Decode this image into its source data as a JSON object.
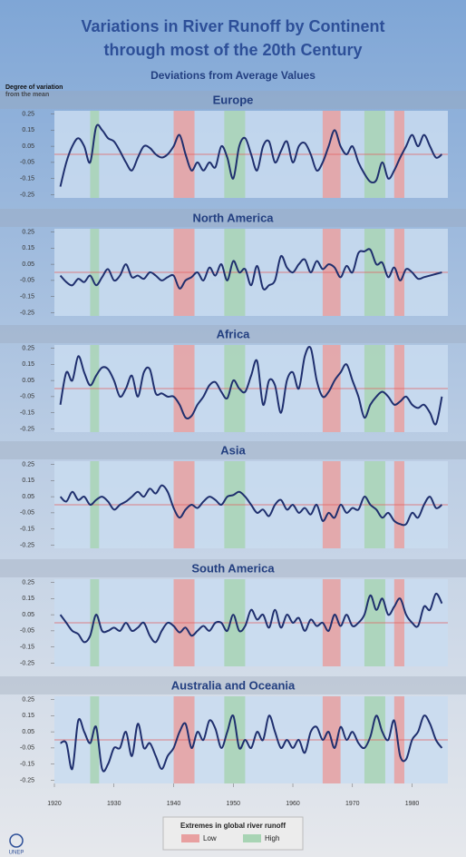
{
  "title": [
    "Variations in River Runoff by Continent",
    "through most of the 20th Century"
  ],
  "subtitle": "Deviations from Average Values",
  "y_label": [
    "Degree of variation",
    "from the mean"
  ],
  "axes": {
    "xlim": [
      1920,
      1986
    ],
    "xticks": [
      1920,
      1930,
      1940,
      1950,
      1960,
      1970,
      1980
    ],
    "ylim": [
      -0.27,
      0.27
    ],
    "yticks": [
      0.25,
      0.15,
      0.05,
      -0.05,
      -0.15,
      -0.25
    ],
    "mean": 0,
    "mean_color": "#e06060"
  },
  "extremes": {
    "title": "Extremes in global river runoff",
    "low": {
      "label": "Low",
      "color": "#e8a0a0",
      "periods": [
        [
          1940,
          1943.5
        ],
        [
          1965,
          1968
        ],
        [
          1977,
          1978.7
        ]
      ]
    },
    "high": {
      "label": "High",
      "color": "#a8d4b4",
      "periods": [
        [
          1926,
          1927.5
        ],
        [
          1948.5,
          1952
        ],
        [
          1972,
          1975.5
        ]
      ]
    }
  },
  "logo": "UNEP",
  "chart_data": [
    {
      "type": "line",
      "title": "Europe",
      "color": "#1f2f6e",
      "x": [
        1921,
        1922,
        1923,
        1924,
        1925,
        1926,
        1927,
        1928,
        1929,
        1930,
        1931,
        1932,
        1933,
        1934,
        1935,
        1936,
        1937,
        1938,
        1939,
        1940,
        1941,
        1942,
        1943,
        1944,
        1945,
        1946,
        1947,
        1948,
        1949,
        1950,
        1951,
        1952,
        1953,
        1954,
        1955,
        1956,
        1957,
        1958,
        1959,
        1960,
        1961,
        1962,
        1963,
        1964,
        1965,
        1966,
        1967,
        1968,
        1969,
        1970,
        1971,
        1972,
        1973,
        1974,
        1975,
        1976,
        1977,
        1978,
        1979,
        1980,
        1981,
        1982,
        1983,
        1984,
        1985
      ],
      "values": [
        -0.2,
        -0.05,
        0.05,
        0.1,
        0.05,
        -0.05,
        0.17,
        0.15,
        0.1,
        0.08,
        0.02,
        -0.05,
        -0.1,
        -0.02,
        0.05,
        0.04,
        0.0,
        -0.02,
        0.0,
        0.05,
        0.12,
        0.0,
        -0.1,
        -0.05,
        -0.1,
        -0.05,
        -0.08,
        0.05,
        -0.02,
        -0.15,
        0.05,
        0.1,
        0.0,
        -0.1,
        0.05,
        0.08,
        -0.05,
        0.02,
        0.08,
        -0.05,
        0.05,
        0.07,
        0.0,
        -0.1,
        -0.05,
        0.05,
        0.15,
        0.05,
        0.0,
        0.05,
        -0.05,
        -0.12,
        -0.17,
        -0.16,
        -0.05,
        -0.15,
        -0.1,
        -0.02,
        0.05,
        0.12,
        0.05,
        0.12,
        0.05,
        -0.02,
        0.0
      ]
    },
    {
      "type": "line",
      "title": "North America",
      "color": "#1f2f6e",
      "x": [
        1921,
        1922,
        1923,
        1924,
        1925,
        1926,
        1927,
        1928,
        1929,
        1930,
        1931,
        1932,
        1933,
        1934,
        1935,
        1936,
        1937,
        1938,
        1939,
        1940,
        1941,
        1942,
        1943,
        1944,
        1945,
        1946,
        1947,
        1948,
        1949,
        1950,
        1951,
        1952,
        1953,
        1954,
        1955,
        1956,
        1957,
        1958,
        1959,
        1960,
        1961,
        1962,
        1963,
        1964,
        1965,
        1966,
        1967,
        1968,
        1969,
        1970,
        1971,
        1972,
        1973,
        1974,
        1975,
        1976,
        1977,
        1978,
        1979,
        1980,
        1981,
        1982,
        1983,
        1984,
        1985
      ],
      "values": [
        -0.02,
        -0.06,
        -0.08,
        -0.04,
        -0.06,
        -0.02,
        -0.08,
        -0.03,
        0.02,
        -0.05,
        -0.02,
        0.05,
        -0.03,
        -0.02,
        -0.04,
        0.0,
        -0.02,
        -0.05,
        -0.03,
        -0.02,
        -0.1,
        -0.05,
        -0.03,
        0.0,
        -0.05,
        0.03,
        -0.02,
        0.05,
        -0.05,
        0.07,
        0.0,
        0.02,
        -0.08,
        0.04,
        -0.1,
        -0.08,
        -0.05,
        0.1,
        0.03,
        0.0,
        0.05,
        0.08,
        0.0,
        0.07,
        0.02,
        0.05,
        0.03,
        -0.03,
        0.04,
        0.0,
        0.12,
        0.13,
        0.14,
        0.05,
        0.06,
        -0.03,
        0.03,
        -0.05,
        0.02,
        0.0,
        -0.04,
        -0.03,
        -0.02,
        -0.01,
        0.0
      ]
    },
    {
      "type": "line",
      "title": "Africa",
      "color": "#1f2f6e",
      "x": [
        1921,
        1922,
        1923,
        1924,
        1925,
        1926,
        1927,
        1928,
        1929,
        1930,
        1931,
        1932,
        1933,
        1934,
        1935,
        1936,
        1937,
        1938,
        1939,
        1940,
        1941,
        1942,
        1943,
        1944,
        1945,
        1946,
        1947,
        1948,
        1949,
        1950,
        1951,
        1952,
        1953,
        1954,
        1955,
        1956,
        1957,
        1958,
        1959,
        1960,
        1961,
        1962,
        1963,
        1964,
        1965,
        1966,
        1967,
        1968,
        1969,
        1970,
        1971,
        1972,
        1973,
        1974,
        1975,
        1976,
        1977,
        1978,
        1979,
        1980,
        1981,
        1982,
        1983,
        1984,
        1985
      ],
      "values": [
        -0.1,
        0.1,
        0.05,
        0.2,
        0.1,
        0.02,
        0.08,
        0.13,
        0.12,
        0.05,
        -0.05,
        0.0,
        0.08,
        -0.05,
        0.1,
        0.12,
        -0.03,
        -0.03,
        -0.05,
        -0.05,
        -0.1,
        -0.18,
        -0.17,
        -0.1,
        -0.05,
        0.02,
        0.04,
        -0.02,
        -0.06,
        0.05,
        0.0,
        -0.02,
        0.08,
        0.17,
        -0.1,
        0.05,
        0.02,
        -0.15,
        0.05,
        0.1,
        0.0,
        0.2,
        0.25,
        0.05,
        -0.05,
        -0.02,
        0.05,
        0.1,
        0.15,
        0.05,
        -0.05,
        -0.18,
        -0.1,
        -0.05,
        -0.02,
        -0.05,
        -0.1,
        -0.08,
        -0.05,
        -0.1,
        -0.12,
        -0.1,
        -0.15,
        -0.22,
        -0.05
      ]
    },
    {
      "type": "line",
      "title": "Asia",
      "color": "#1f2f6e",
      "x": [
        1921,
        1922,
        1923,
        1924,
        1925,
        1926,
        1927,
        1928,
        1929,
        1930,
        1931,
        1932,
        1933,
        1934,
        1935,
        1936,
        1937,
        1938,
        1939,
        1940,
        1941,
        1942,
        1943,
        1944,
        1945,
        1946,
        1947,
        1948,
        1949,
        1950,
        1951,
        1952,
        1953,
        1954,
        1955,
        1956,
        1957,
        1958,
        1959,
        1960,
        1961,
        1962,
        1963,
        1964,
        1965,
        1966,
        1967,
        1968,
        1969,
        1970,
        1971,
        1972,
        1973,
        1974,
        1975,
        1976,
        1977,
        1978,
        1979,
        1980,
        1981,
        1982,
        1983,
        1984,
        1985
      ],
      "values": [
        0.05,
        0.02,
        0.08,
        0.03,
        0.05,
        0.0,
        0.03,
        0.05,
        0.02,
        -0.03,
        0.0,
        0.02,
        0.05,
        0.08,
        0.05,
        0.1,
        0.07,
        0.12,
        0.08,
        -0.02,
        -0.08,
        -0.03,
        0.0,
        -0.02,
        0.02,
        0.05,
        0.03,
        0.0,
        0.05,
        0.06,
        0.08,
        0.05,
        0.0,
        -0.05,
        -0.03,
        -0.07,
        0.0,
        0.03,
        -0.03,
        0.0,
        -0.05,
        -0.02,
        -0.06,
        0.0,
        -0.1,
        -0.05,
        -0.08,
        0.0,
        -0.05,
        -0.02,
        -0.03,
        0.05,
        0.0,
        -0.03,
        -0.08,
        -0.05,
        -0.1,
        -0.12,
        -0.12,
        -0.05,
        -0.08,
        0.0,
        0.05,
        -0.02,
        0.0
      ]
    },
    {
      "type": "line",
      "title": "South America",
      "color": "#1f2f6e",
      "x": [
        1921,
        1922,
        1923,
        1924,
        1925,
        1926,
        1927,
        1928,
        1929,
        1930,
        1931,
        1932,
        1933,
        1934,
        1935,
        1936,
        1937,
        1938,
        1939,
        1940,
        1941,
        1942,
        1943,
        1944,
        1945,
        1946,
        1947,
        1948,
        1949,
        1950,
        1951,
        1952,
        1953,
        1954,
        1955,
        1956,
        1957,
        1958,
        1959,
        1960,
        1961,
        1962,
        1963,
        1964,
        1965,
        1966,
        1967,
        1968,
        1969,
        1970,
        1971,
        1972,
        1973,
        1974,
        1975,
        1976,
        1977,
        1978,
        1979,
        1980,
        1981,
        1982,
        1983,
        1984,
        1985
      ],
      "values": [
        0.05,
        0.0,
        -0.05,
        -0.07,
        -0.12,
        -0.08,
        0.05,
        -0.05,
        -0.05,
        -0.03,
        -0.05,
        0.0,
        -0.05,
        -0.03,
        0.0,
        -0.08,
        -0.12,
        -0.05,
        0.0,
        -0.02,
        -0.06,
        -0.03,
        -0.08,
        -0.05,
        -0.02,
        -0.05,
        0.0,
        0.0,
        -0.05,
        0.05,
        -0.05,
        -0.02,
        0.08,
        0.02,
        0.05,
        -0.03,
        0.08,
        -0.03,
        0.05,
        0.0,
        0.03,
        -0.05,
        0.02,
        -0.02,
        0.0,
        -0.05,
        0.05,
        -0.02,
        0.05,
        -0.02,
        0.0,
        0.05,
        0.17,
        0.08,
        0.15,
        0.05,
        0.1,
        0.15,
        0.05,
        0.0,
        -0.02,
        0.1,
        0.08,
        0.18,
        0.12
      ]
    },
    {
      "type": "line",
      "title": "Australia and Oceania",
      "color": "#1f2f6e",
      "x": [
        1921,
        1922,
        1923,
        1924,
        1925,
        1926,
        1927,
        1928,
        1929,
        1930,
        1931,
        1932,
        1933,
        1934,
        1935,
        1936,
        1937,
        1938,
        1939,
        1940,
        1941,
        1942,
        1943,
        1944,
        1945,
        1946,
        1947,
        1948,
        1949,
        1950,
        1951,
        1952,
        1953,
        1954,
        1955,
        1956,
        1957,
        1958,
        1959,
        1960,
        1961,
        1962,
        1963,
        1964,
        1965,
        1966,
        1967,
        1968,
        1969,
        1970,
        1971,
        1972,
        1973,
        1974,
        1975,
        1976,
        1977,
        1978,
        1979,
        1980,
        1981,
        1982,
        1983,
        1984,
        1985
      ],
      "values": [
        -0.02,
        -0.02,
        -0.18,
        0.12,
        0.05,
        -0.02,
        0.08,
        -0.18,
        -0.15,
        -0.05,
        -0.05,
        0.05,
        -0.1,
        0.1,
        -0.05,
        -0.02,
        -0.1,
        -0.18,
        -0.1,
        -0.05,
        0.05,
        0.1,
        -0.05,
        0.05,
        0.0,
        0.12,
        0.07,
        -0.05,
        0.05,
        0.15,
        -0.05,
        0.0,
        -0.05,
        0.05,
        0.0,
        0.15,
        0.05,
        -0.05,
        0.0,
        -0.05,
        0.0,
        -0.08,
        0.05,
        0.08,
        0.0,
        0.05,
        -0.05,
        0.08,
        0.0,
        0.05,
        -0.02,
        -0.05,
        0.02,
        0.15,
        0.05,
        0.0,
        0.12,
        -0.1,
        -0.12,
        0.0,
        0.05,
        0.15,
        0.1,
        0.0,
        -0.05
      ]
    }
  ]
}
